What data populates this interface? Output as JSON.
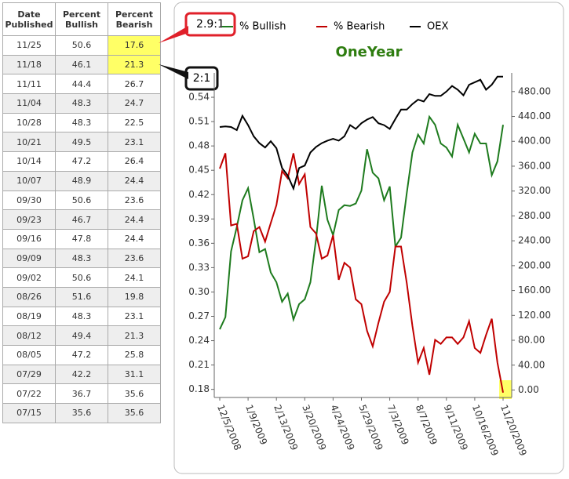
{
  "table": {
    "header": [
      "Date Published",
      "Percent Bullish",
      "Percent Bearish"
    ],
    "rows": [
      [
        "11/25",
        "50.6",
        "17.6"
      ],
      [
        "11/18",
        "46.1",
        "21.3"
      ],
      [
        "11/11",
        "44.4",
        "26.7"
      ],
      [
        "11/04",
        "48.3",
        "24.7"
      ],
      [
        "10/28",
        "48.3",
        "22.5"
      ],
      [
        "10/21",
        "49.5",
        "23.1"
      ],
      [
        "10/14",
        "47.2",
        "26.4"
      ],
      [
        "10/07",
        "48.9",
        "24.4"
      ],
      [
        "09/30",
        "50.6",
        "23.6"
      ],
      [
        "09/23",
        "46.7",
        "24.4"
      ],
      [
        "09/16",
        "47.8",
        "24.4"
      ],
      [
        "09/09",
        "48.3",
        "23.6"
      ],
      [
        "09/02",
        "50.6",
        "24.1"
      ],
      [
        "08/26",
        "51.6",
        "19.8"
      ],
      [
        "08/19",
        "48.3",
        "23.1"
      ],
      [
        "08/12",
        "49.4",
        "21.3"
      ],
      [
        "08/05",
        "47.2",
        "25.8"
      ],
      [
        "07/29",
        "42.2",
        "31.1"
      ],
      [
        "07/22",
        "36.7",
        "35.6"
      ],
      [
        "07/15",
        "35.6",
        "35.6"
      ]
    ]
  },
  "annotations": [
    "2.9:1",
    "2:1"
  ],
  "chart_data": {
    "type": "line",
    "title": "OneYear",
    "categories": [
      "12/5/2008",
      null,
      null,
      null,
      null,
      "1/9/2009",
      null,
      null,
      null,
      null,
      "2/13/2009",
      null,
      null,
      null,
      null,
      "3/20/2009",
      null,
      null,
      null,
      null,
      "4/24/2009",
      null,
      null,
      null,
      null,
      "5/29/2009",
      null,
      null,
      null,
      null,
      "7/3/2009",
      null,
      null,
      null,
      null,
      "8/7/2009",
      null,
      null,
      null,
      null,
      "9/11/2009",
      null,
      null,
      null,
      null,
      "10/16/2009",
      null,
      null,
      null,
      null,
      "11/20/2009"
    ],
    "series": [
      {
        "name": "% Bullish",
        "color": "#1e7b1e",
        "values": [
          0.254,
          0.269,
          0.35,
          0.38,
          0.413,
          0.428,
          0.39,
          0.349,
          0.353,
          0.324,
          0.312,
          0.288,
          0.298,
          0.266,
          0.285,
          0.291,
          0.312,
          0.365,
          0.431,
          0.389,
          0.37,
          0.401,
          0.407,
          0.406,
          0.409,
          0.425,
          0.476,
          0.447,
          0.44,
          0.413,
          0.43,
          0.356,
          0.367,
          0.422,
          0.472,
          0.494,
          0.483,
          0.516,
          0.506,
          0.483,
          0.478,
          0.467,
          0.506,
          0.489,
          0.472,
          0.495,
          0.483,
          0.483,
          0.444,
          0.461,
          0.506
        ]
      },
      {
        "name": "% Bearish",
        "color": "#c00000",
        "values": [
          0.452,
          0.471,
          0.382,
          0.384,
          0.341,
          0.344,
          0.375,
          0.38,
          0.362,
          0.385,
          0.407,
          0.449,
          0.44,
          0.471,
          0.433,
          0.445,
          0.38,
          0.372,
          0.341,
          0.345,
          0.37,
          0.315,
          0.336,
          0.33,
          0.291,
          0.285,
          0.252,
          0.233,
          0.262,
          0.288,
          0.3,
          0.356,
          0.356,
          0.311,
          0.258,
          0.213,
          0.231,
          0.198,
          0.241,
          0.236,
          0.244,
          0.244,
          0.236,
          0.244,
          0.264,
          0.231,
          0.225,
          0.247,
          0.267,
          0.213,
          0.176
        ]
      },
      {
        "name": "OEX",
        "color": "#000000",
        "axis": "y2",
        "values": [
          423,
          424,
          423,
          418,
          441,
          426,
          408,
          397,
          390,
          400,
          389,
          357,
          345,
          324,
          357,
          361,
          382,
          391,
          397,
          401,
          404,
          401,
          408,
          426,
          420,
          429,
          435,
          439,
          429,
          426,
          420,
          436,
          451,
          451,
          460,
          467,
          464,
          476,
          473,
          473,
          480,
          489,
          483,
          474,
          491,
          495,
          499,
          483,
          491,
          504,
          504
        ]
      }
    ],
    "ylim": [
      0.17,
      0.57
    ],
    "yticks": [
      0.18,
      0.21,
      0.24,
      0.27,
      {
        "value": 0.3,
        "label": "0.30"
      },
      0.33,
      0.36,
      0.39,
      0.42,
      0.45,
      0.48,
      0.51,
      0.54
    ],
    "y2lim": [
      -12,
      510
    ],
    "y2ticks": [
      {
        "value": 0,
        "label": "0.00"
      },
      {
        "value": 40,
        "label": "40.00"
      },
      {
        "value": 80,
        "label": "80.00"
      },
      {
        "value": 120,
        "label": "120.00"
      },
      {
        "value": 160,
        "label": "160.00"
      },
      {
        "value": 200,
        "label": "200.00"
      },
      {
        "value": 240,
        "label": "240.00"
      },
      {
        "value": 280,
        "label": "280.00"
      },
      {
        "value": 320,
        "label": "320.00"
      },
      {
        "value": 360,
        "label": "360.00"
      },
      {
        "value": 400,
        "label": "400.00"
      },
      {
        "value": 440,
        "label": "440.00"
      },
      {
        "value": 480,
        "label": "480.00"
      }
    ],
    "legend": "top",
    "grid": false
  }
}
